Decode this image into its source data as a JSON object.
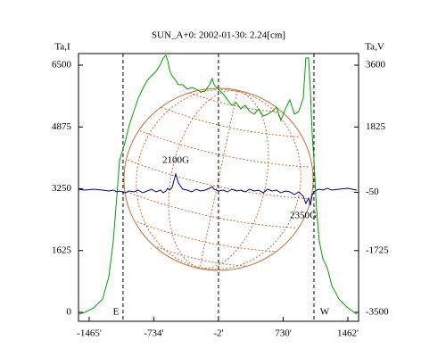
{
  "chart_data": {
    "type": "line",
    "title": "SUN_A+0: 2002-01-30: 2.24[cm]",
    "y_label": "Ta,I",
    "y2_label": "Ta,V",
    "x": [
      -1586,
      -1515,
      -1414,
      -1314,
      -1243,
      -1192,
      -1152,
      -1122,
      -1061,
      -1011,
      -960,
      -910,
      -860,
      -809,
      -759,
      -708,
      -658,
      -627,
      -597,
      -577,
      -557,
      -527,
      -486,
      -456,
      -406,
      -355,
      -305,
      -254,
      -204,
      -153,
      -103,
      -73,
      -52,
      -2,
      49,
      99,
      150,
      200,
      250,
      301,
      351,
      402,
      452,
      503,
      553,
      604,
      654,
      704,
      755,
      805,
      856,
      906,
      957,
      987,
      1017,
      1037,
      1058,
      1078,
      1108,
      1138,
      1179,
      1229,
      1280,
      1360,
      1461,
      1562
    ],
    "series": [
      {
        "color": "#00a000",
        "values": [
          -47,
          0,
          117,
          352,
          939,
          1878,
          3051,
          3990,
          4459,
          4929,
          5281,
          5633,
          5868,
          6102,
          6220,
          6337,
          6525,
          6689,
          6759,
          6619,
          6384,
          6220,
          6102,
          5985,
          5985,
          5868,
          5914,
          5868,
          5797,
          5821,
          5985,
          6149,
          5985,
          5868,
          5750,
          5586,
          5445,
          5515,
          5351,
          5445,
          5281,
          5210,
          5351,
          5163,
          5210,
          5281,
          5398,
          5046,
          5351,
          5586,
          5210,
          5281,
          5633,
          6689,
          6689,
          5868,
          4694,
          3990,
          2699,
          1878,
          1408,
          1174,
          704,
          352,
          117,
          -47
        ]
      },
      {
        "color": "#000080",
        "axis": "y2",
        "values": [
          38,
          12,
          38,
          12,
          -14,
          12,
          -39,
          -14,
          -65,
          -14,
          -39,
          12,
          -65,
          -14,
          38,
          -39,
          12,
          -65,
          -14,
          63,
          12,
          89,
          473,
          217,
          38,
          12,
          -39,
          38,
          -14,
          12,
          63,
          114,
          38,
          -14,
          12,
          -39,
          38,
          -14,
          12,
          -39,
          38,
          -14,
          12,
          -65,
          38,
          -14,
          12,
          -65,
          -14,
          -39,
          -116,
          -39,
          -168,
          -373,
          -219,
          -424,
          -116,
          -39,
          12,
          38,
          12,
          63,
          12,
          38,
          63,
          12
        ]
      }
    ],
    "xlim": [
      -1586,
      1583
    ],
    "xticks": [
      {
        "value": -1465,
        "label": "-1465'"
      },
      {
        "value": -734,
        "label": "-734'"
      },
      {
        "value": -2,
        "label": "-2'"
      },
      {
        "value": 730,
        "label": "730'"
      },
      {
        "value": 1462,
        "label": "1462'"
      }
    ],
    "ylim": [
      -235,
      6805
    ],
    "yticks": [
      0,
      1625,
      3250,
      4875,
      6500
    ],
    "y2lim": [
      -3756,
      3933
    ],
    "y2ticks": [
      -3500,
      -1725,
      -50,
      1825,
      3600
    ],
    "vlines": [
      {
        "x": -1082,
        "label": "E"
      },
      {
        "x": -2
      },
      {
        "x": 1078,
        "label": "W"
      }
    ],
    "annotations": [
      {
        "text": "2100G",
        "x": -486,
        "y": 3990
      },
      {
        "text": "2350G",
        "x": 957,
        "y": 2535
      }
    ]
  }
}
